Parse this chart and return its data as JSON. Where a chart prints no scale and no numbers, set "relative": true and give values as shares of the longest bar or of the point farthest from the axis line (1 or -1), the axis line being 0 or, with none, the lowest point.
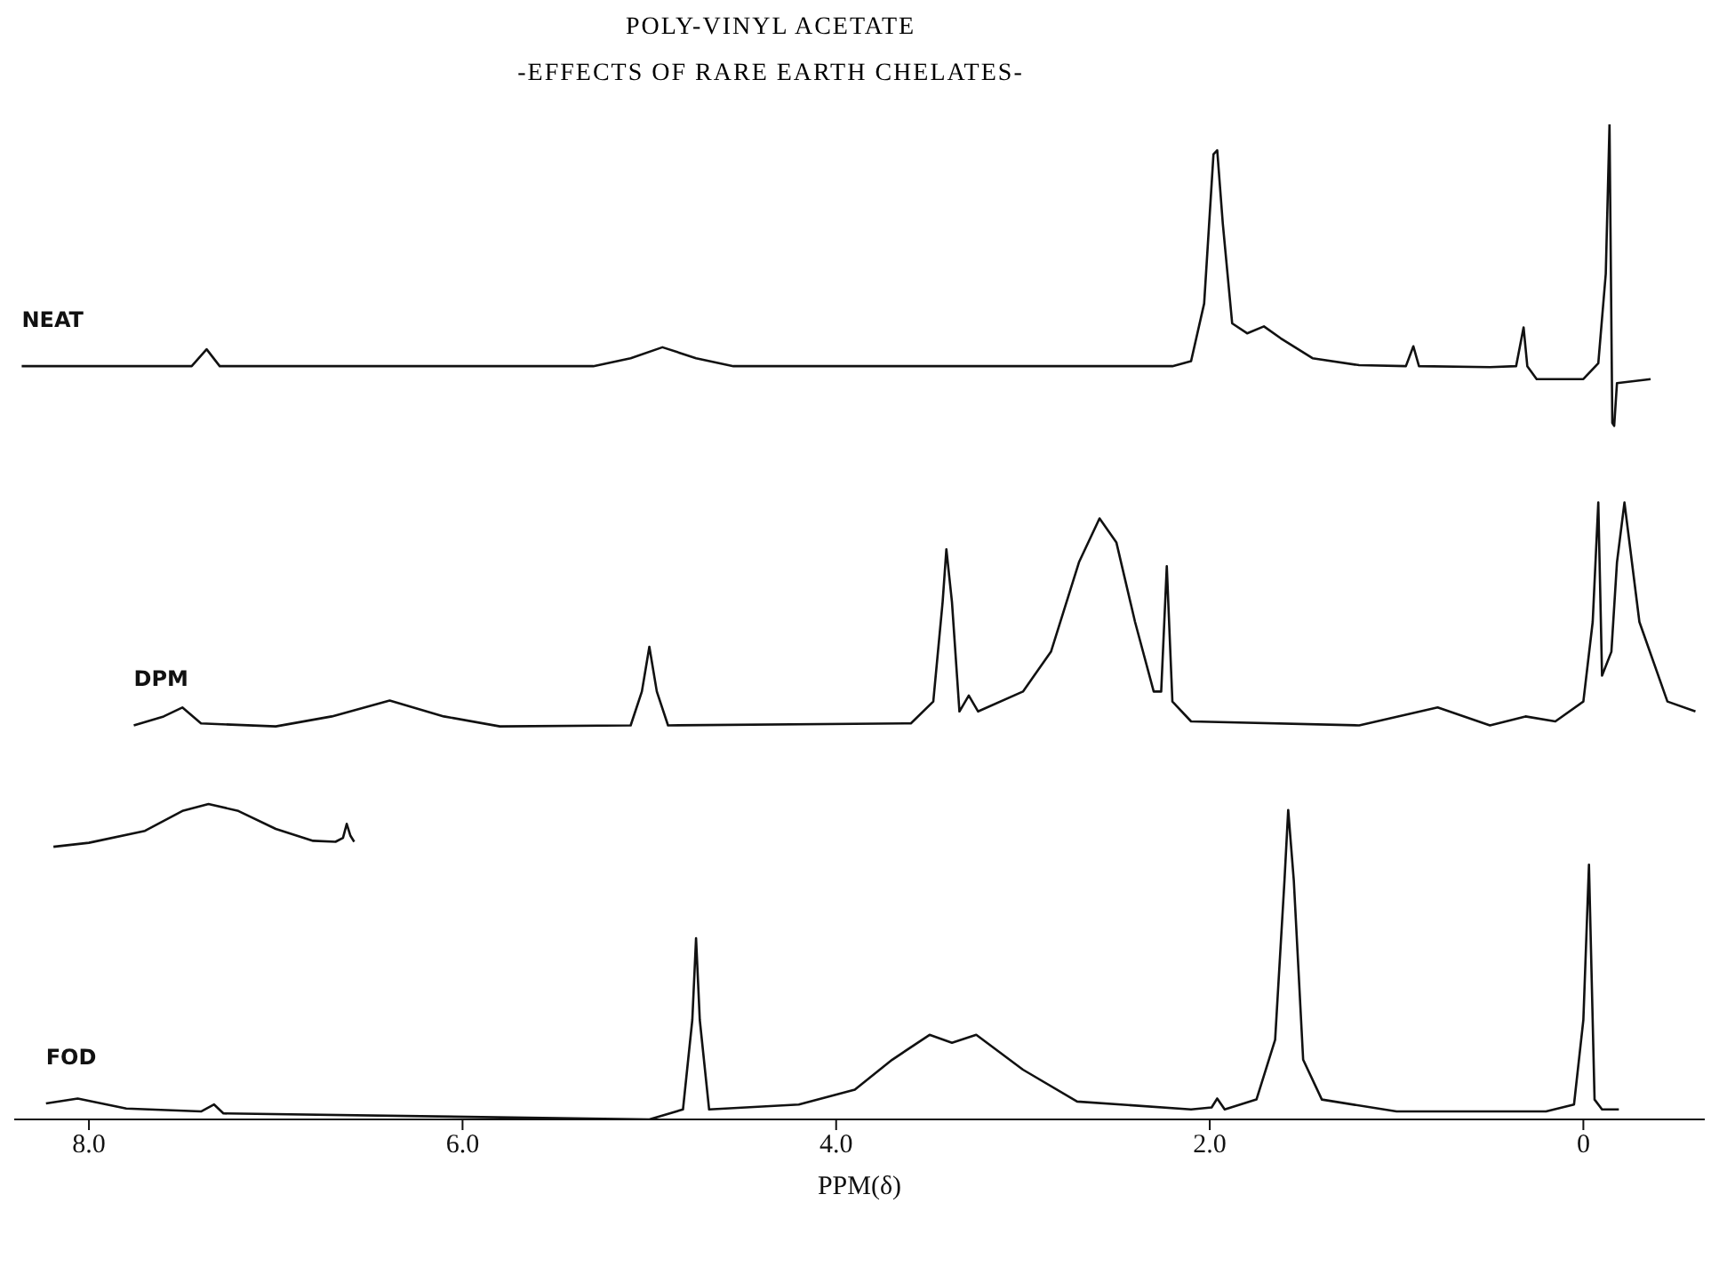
{
  "chart_data": {
    "type": "line",
    "title": "POLY-VINYL ACETATE",
    "subtitle": "-EFFECTS OF RARE EARTH CHELATES-",
    "xlabel": "PPM(δ)",
    "relative": true,
    "xlim": [
      8.4,
      -0.65
    ],
    "xticks": [
      {
        "value": 8,
        "label": "8.0"
      },
      {
        "value": 6,
        "label": "6.0"
      },
      {
        "value": 4,
        "label": "4.0"
      },
      {
        "value": 2,
        "label": "2.0"
      },
      0
    ],
    "marker": "none",
    "line_style": "solid",
    "series": [
      {
        "name": "NEAT",
        "color": "#111111",
        "x": [
          8.36,
          7.45,
          7.37,
          7.3,
          5.3,
          5.1,
          4.93,
          4.75,
          4.55,
          2.2,
          2.1,
          2.03,
          1.98,
          1.96,
          1.93,
          1.88,
          1.8,
          1.71,
          1.62,
          1.45,
          1.2,
          0.95,
          0.91,
          0.88,
          0.5,
          0.36,
          0.32,
          0.3,
          0.25,
          0.15,
          0,
          -0.08,
          -0.12,
          -0.14,
          -0.155,
          -0.165,
          -0.18,
          -0.36
        ],
        "values": [
          0.757,
          0.757,
          0.774,
          0.757,
          0.757,
          0.765,
          0.776,
          0.765,
          0.757,
          0.757,
          0.762,
          0.82,
          0.97,
          0.974,
          0.9,
          0.8,
          0.79,
          0.797,
          0.785,
          0.765,
          0.758,
          0.757,
          0.777,
          0.757,
          0.756,
          0.757,
          0.796,
          0.757,
          0.744,
          0.744,
          0.744,
          0.76,
          0.85,
          1,
          0.7,
          0.697,
          0.74,
          0.744
        ]
      },
      {
        "name": "DPM",
        "color": "#111111",
        "x": [
          7.76,
          7.6,
          7.5,
          7.4,
          7.0,
          6.7,
          6.39,
          6.1,
          5.8,
          5.1,
          5.04,
          5.0,
          4.96,
          4.9,
          3.6,
          3.48,
          3.43,
          3.41,
          3.38,
          3.34,
          3.29,
          3.24,
          3.0,
          2.85,
          2.7,
          2.59,
          2.5,
          2.4,
          2.3,
          2.26,
          2.23,
          2.2,
          2.1,
          1.2,
          0.78,
          0.5,
          0.31,
          0.15,
          0.0,
          -0.05,
          -0.08,
          -0.1,
          -0.15,
          -0.18,
          -0.22,
          -0.3,
          -0.45,
          -0.6
        ],
        "values": [
          0.396,
          0.405,
          0.414,
          0.398,
          0.395,
          0.405,
          0.421,
          0.405,
          0.395,
          0.396,
          0.43,
          0.475,
          0.43,
          0.396,
          0.398,
          0.42,
          0.52,
          0.573,
          0.52,
          0.41,
          0.426,
          0.41,
          0.43,
          0.47,
          0.56,
          0.604,
          0.58,
          0.5,
          0.43,
          0.43,
          0.556,
          0.42,
          0.4,
          0.396,
          0.414,
          0.396,
          0.405,
          0.4,
          0.42,
          0.5,
          0.62,
          0.446,
          0.47,
          0.56,
          0.62,
          0.5,
          0.42,
          0.41
        ]
      },
      {
        "name": "FOD",
        "color": "#111111",
        "x": [
          8.23,
          8.06,
          7.8,
          7.4,
          7.33,
          7.28,
          5.0,
          4.82,
          4.77,
          4.75,
          4.73,
          4.68,
          4.2,
          3.9,
          3.7,
          3.5,
          3.38,
          3.25,
          3.0,
          2.71,
          2.1,
          1.99,
          1.96,
          1.92,
          1.75,
          1.65,
          1.6,
          1.58,
          1.55,
          1.5,
          1.4,
          1.0,
          0.2,
          0.05,
          0.0,
          -0.03,
          -0.06,
          -0.1,
          -0.19
        ],
        "values": [
          0.016,
          0.021,
          0.011,
          0.008,
          0.015,
          0.006,
          0,
          0.01,
          0.1,
          0.182,
          0.1,
          0.01,
          0.015,
          0.03,
          0.06,
          0.085,
          0.077,
          0.085,
          0.05,
          0.018,
          0.01,
          0.012,
          0.021,
          0.01,
          0.02,
          0.08,
          0.24,
          0.311,
          0.24,
          0.06,
          0.02,
          0.008,
          0.008,
          0.015,
          0.1,
          0.256,
          0.02,
          0.01,
          0.01
        ]
      },
      {
        "color": "#111111",
        "x": [
          8.19,
          8.0,
          7.7,
          7.5,
          7.36,
          7.2,
          7.0,
          6.8,
          6.68,
          6.64,
          6.62,
          6.6,
          6.58
        ],
        "values": [
          0.274,
          0.278,
          0.29,
          0.31,
          0.317,
          0.31,
          0.292,
          0.28,
          0.279,
          0.283,
          0.297,
          0.285,
          0.279
        ]
      }
    ]
  }
}
